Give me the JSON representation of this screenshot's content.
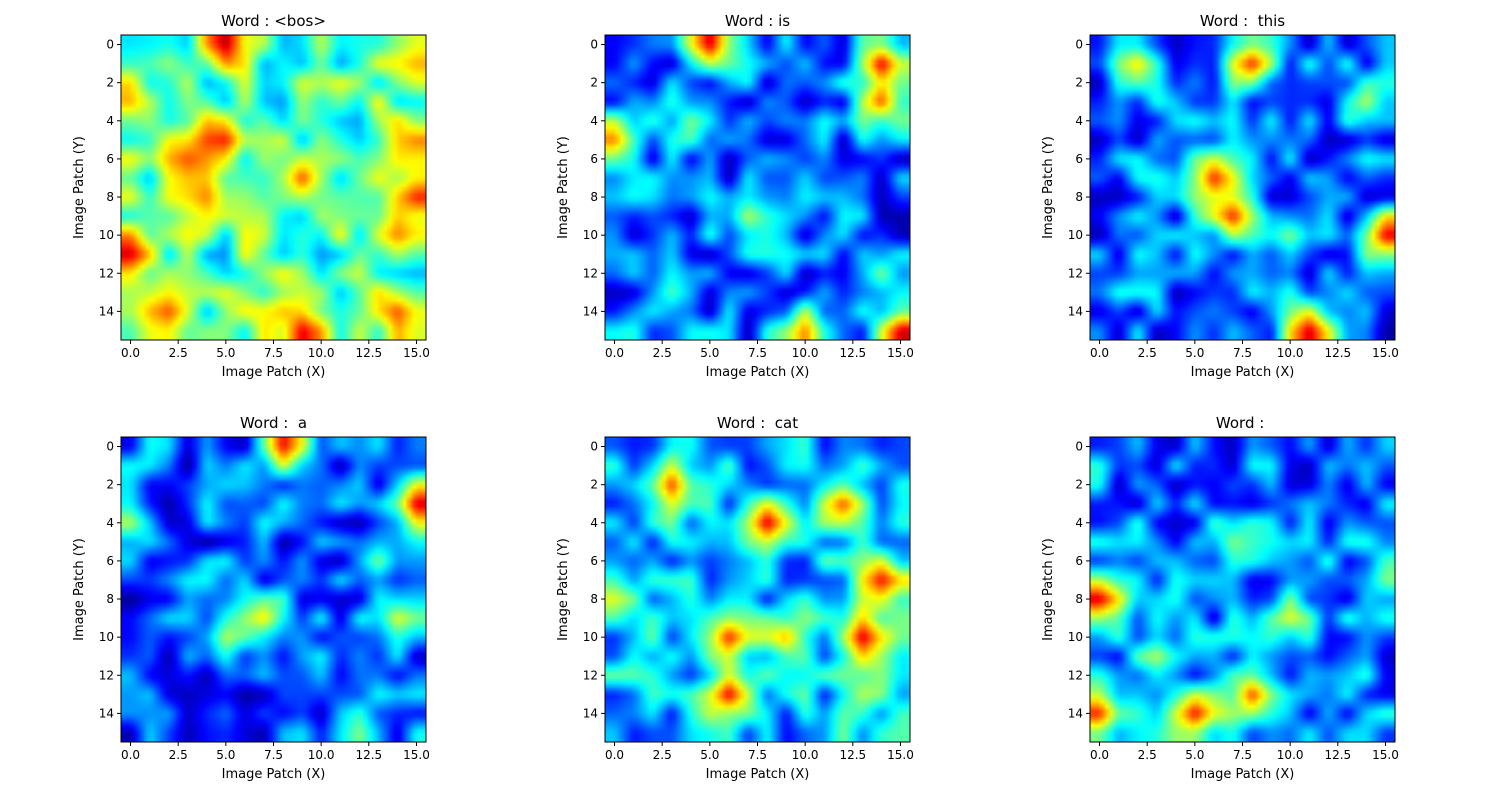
{
  "figure": {
    "background": "#ffffff",
    "colormap": "jet"
  },
  "chart_data": [
    {
      "type": "heatmap",
      "title": "Word : <bos>",
      "xlabel": "Image Patch (X)",
      "ylabel": "Image Patch (Y)",
      "xticks": [
        "0.0",
        "2.5",
        "5.0",
        "7.5",
        "10.0",
        "12.5",
        "15.0"
      ],
      "yticks": [
        "0",
        "2",
        "4",
        "6",
        "8",
        "10",
        "12",
        "14"
      ],
      "xlim": [
        -0.5,
        15.5
      ],
      "ylim": [
        15.5,
        -0.5
      ],
      "seed": 11,
      "hotspots": [
        {
          "x": 5,
          "y": 0,
          "v": 0.95
        },
        {
          "x": 4.5,
          "y": 5,
          "v": 0.9
        },
        {
          "x": 0,
          "y": 11,
          "v": 0.92
        },
        {
          "x": 9,
          "y": 15,
          "v": 0.9
        },
        {
          "x": 15,
          "y": 8,
          "v": 0.85
        },
        {
          "x": 3,
          "y": 6,
          "v": 0.8
        },
        {
          "x": 4,
          "y": 8,
          "v": 0.75
        },
        {
          "x": 9,
          "y": 7,
          "v": 0.8
        },
        {
          "x": 14,
          "y": 14,
          "v": 0.8
        },
        {
          "x": 2,
          "y": 14,
          "v": 0.8
        },
        {
          "x": 15,
          "y": 5,
          "v": 0.75
        },
        {
          "x": 14,
          "y": 10,
          "v": 0.75
        },
        {
          "x": 0,
          "y": 3,
          "v": 0.7
        },
        {
          "x": 15,
          "y": 1,
          "v": 0.7
        }
      ],
      "base": 0.45
    },
    {
      "type": "heatmap",
      "title": "Word : is",
      "xlabel": "Image Patch (X)",
      "ylabel": "Image Patch (Y)",
      "xticks": [
        "0.0",
        "2.5",
        "5.0",
        "7.5",
        "10.0",
        "12.5",
        "15.0"
      ],
      "yticks": [
        "0",
        "2",
        "4",
        "6",
        "8",
        "10",
        "12",
        "14"
      ],
      "xlim": [
        -0.5,
        15.5
      ],
      "ylim": [
        15.5,
        -0.5
      ],
      "seed": 23,
      "hotspots": [
        {
          "x": 5,
          "y": 0,
          "v": 0.92
        },
        {
          "x": 14,
          "y": 1,
          "v": 0.9
        },
        {
          "x": 14,
          "y": 3,
          "v": 0.8
        },
        {
          "x": 0,
          "y": 5,
          "v": 0.75
        },
        {
          "x": 15,
          "y": 15,
          "v": 0.92
        },
        {
          "x": 10,
          "y": 15,
          "v": 0.75
        },
        {
          "x": 7,
          "y": 9,
          "v": 0.55
        },
        {
          "x": 4,
          "y": 4,
          "v": 0.5
        },
        {
          "x": 14,
          "y": 12,
          "v": 0.5
        },
        {
          "x": 3,
          "y": 13,
          "v": 0.45
        }
      ],
      "base": 0.22
    },
    {
      "type": "heatmap",
      "title": "Word :  this",
      "xlabel": "Image Patch (X)",
      "ylabel": "Image Patch (Y)",
      "xticks": [
        "0.0",
        "2.5",
        "5.0",
        "7.5",
        "10.0",
        "12.5",
        "15.0"
      ],
      "yticks": [
        "0",
        "2",
        "4",
        "6",
        "8",
        "10",
        "12",
        "14"
      ],
      "xlim": [
        -0.5,
        15.5
      ],
      "ylim": [
        15.5,
        -0.5
      ],
      "seed": 37,
      "hotspots": [
        {
          "x": 8,
          "y": 1,
          "v": 0.85
        },
        {
          "x": 6,
          "y": 7,
          "v": 0.85
        },
        {
          "x": 7,
          "y": 9,
          "v": 0.85
        },
        {
          "x": 15,
          "y": 10,
          "v": 0.9
        },
        {
          "x": 11,
          "y": 15,
          "v": 0.92
        },
        {
          "x": 2,
          "y": 1,
          "v": 0.65
        },
        {
          "x": 14,
          "y": 3,
          "v": 0.55
        },
        {
          "x": 10,
          "y": 10,
          "v": 0.5
        }
      ],
      "base": 0.22
    },
    {
      "type": "heatmap",
      "title": "Word :  a",
      "xlabel": "Image Patch (X)",
      "ylabel": "Image Patch (Y)",
      "xticks": [
        "0.0",
        "2.5",
        "5.0",
        "7.5",
        "10.0",
        "12.5",
        "15.0"
      ],
      "yticks": [
        "0",
        "2",
        "4",
        "6",
        "8",
        "10",
        "12",
        "14"
      ],
      "xlim": [
        -0.5,
        15.5
      ],
      "ylim": [
        15.5,
        -0.5
      ],
      "seed": 41,
      "hotspots": [
        {
          "x": 8,
          "y": 0,
          "v": 0.88
        },
        {
          "x": 15,
          "y": 3,
          "v": 0.92
        },
        {
          "x": 7,
          "y": 9,
          "v": 0.65
        },
        {
          "x": 14,
          "y": 9,
          "v": 0.6
        },
        {
          "x": 0,
          "y": 4,
          "v": 0.55
        },
        {
          "x": 5,
          "y": 10,
          "v": 0.55
        },
        {
          "x": 12,
          "y": 15,
          "v": 0.5
        },
        {
          "x": 13,
          "y": 6,
          "v": 0.5
        }
      ],
      "base": 0.2
    },
    {
      "type": "heatmap",
      "title": "Word :  cat",
      "xlabel": "Image Patch (X)",
      "ylabel": "Image Patch (Y)",
      "xticks": [
        "0.0",
        "2.5",
        "5.0",
        "7.5",
        "10.0",
        "12.5",
        "15.0"
      ],
      "yticks": [
        "0",
        "2",
        "4",
        "6",
        "8",
        "10",
        "12",
        "14"
      ],
      "xlim": [
        -0.5,
        15.5
      ],
      "ylim": [
        15.5,
        -0.5
      ],
      "seed": 53,
      "hotspots": [
        {
          "x": 8,
          "y": 4,
          "v": 0.92
        },
        {
          "x": 13,
          "y": 10,
          "v": 0.92
        },
        {
          "x": 14,
          "y": 7,
          "v": 0.88
        },
        {
          "x": 6,
          "y": 13,
          "v": 0.9
        },
        {
          "x": 3,
          "y": 2,
          "v": 0.82
        },
        {
          "x": 12,
          "y": 3,
          "v": 0.8
        },
        {
          "x": 6,
          "y": 10,
          "v": 0.85
        },
        {
          "x": 9,
          "y": 10,
          "v": 0.7
        },
        {
          "x": 0,
          "y": 8,
          "v": 0.6
        },
        {
          "x": 13,
          "y": 13,
          "v": 0.55
        }
      ],
      "base": 0.3
    },
    {
      "type": "heatmap",
      "title": "Word : ",
      "xlabel": "Image Patch (X)",
      "ylabel": "Image Patch (Y)",
      "xticks": [
        "0.0",
        "2.5",
        "5.0",
        "7.5",
        "10.0",
        "12.5",
        "15.0"
      ],
      "yticks": [
        "0",
        "2",
        "4",
        "6",
        "8",
        "10",
        "12",
        "14"
      ],
      "xlim": [
        -0.5,
        15.5
      ],
      "ylim": [
        15.5,
        -0.5
      ],
      "seed": 67,
      "hotspots": [
        {
          "x": 0,
          "y": 8,
          "v": 0.92
        },
        {
          "x": 0,
          "y": 14,
          "v": 0.85
        },
        {
          "x": 5,
          "y": 14,
          "v": 0.88
        },
        {
          "x": 8,
          "y": 13,
          "v": 0.82
        },
        {
          "x": 10,
          "y": 9,
          "v": 0.6
        },
        {
          "x": 3,
          "y": 11,
          "v": 0.55
        },
        {
          "x": 7,
          "y": 5,
          "v": 0.5
        },
        {
          "x": 15,
          "y": 7,
          "v": 0.5
        }
      ],
      "base": 0.24
    }
  ]
}
